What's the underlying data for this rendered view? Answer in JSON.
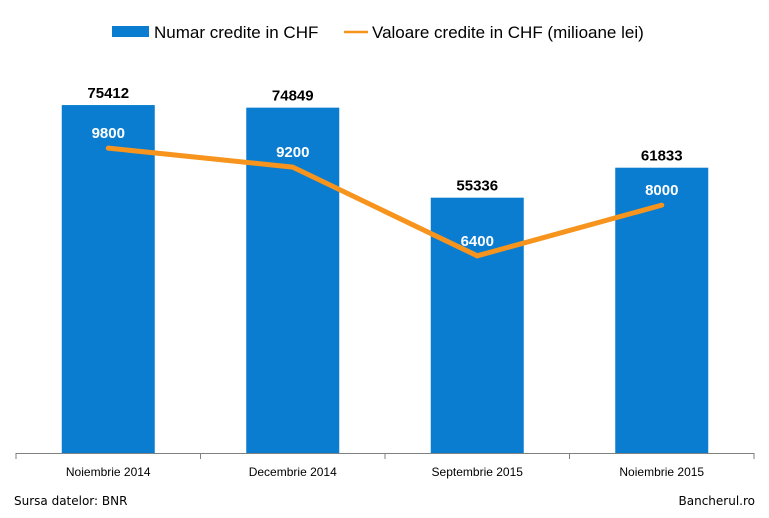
{
  "chart_data": {
    "type": "bar",
    "categories": [
      "Noiembrie 2014",
      "Decembrie 2014",
      "Septembrie 2015",
      "Noiembrie 2015"
    ],
    "series": [
      {
        "name": "Numar credite in CHF",
        "kind": "bar",
        "color": "#0a7dd1",
        "values": [
          75412,
          74849,
          55336,
          61833
        ],
        "labels": [
          "75412",
          "74849",
          "55336",
          "61833"
        ]
      },
      {
        "name": "Valoare credite in CHF (milioane lei)",
        "kind": "line",
        "color": "#f7941d",
        "values": [
          9800,
          9200,
          6400,
          8000
        ],
        "labels": [
          "9800",
          "9200",
          "6400",
          "8000"
        ]
      }
    ],
    "legend_position": "top",
    "grid": false
  },
  "footer": {
    "source": "Sursa datelor: BNR",
    "brand": "Bancherul.ro"
  }
}
